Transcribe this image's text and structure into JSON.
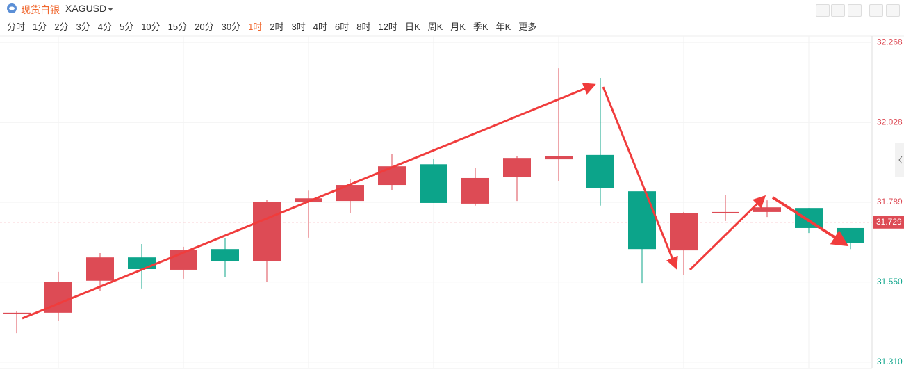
{
  "header": {
    "name": "现货白银",
    "symbol": "XAGUSD"
  },
  "toolbar": {
    "timeframes": [
      "分时",
      "1分",
      "2分",
      "3分",
      "4分",
      "5分",
      "10分",
      "15分",
      "20分",
      "30分",
      "1时",
      "2时",
      "3时",
      "4时",
      "6时",
      "8时",
      "12时",
      "日K",
      "周K",
      "月K",
      "季K",
      "年K",
      "更多"
    ],
    "active": 10
  },
  "chart_data": {
    "type": "candlestick",
    "open": [
      31.455,
      31.458,
      31.554,
      31.624,
      31.587,
      31.649,
      31.614,
      31.789,
      31.793,
      31.841,
      31.903,
      31.785,
      31.864,
      31.918,
      31.931,
      31.822,
      31.645,
      31.759,
      31.76,
      31.772,
      31.712
    ],
    "high": [
      31.464,
      31.581,
      31.637,
      31.664,
      31.656,
      31.681,
      31.797,
      31.824,
      31.858,
      31.933,
      31.92,
      31.893,
      31.928,
      32.191,
      32.162,
      31.822,
      31.76,
      31.812,
      31.795,
      31.772,
      31.712
    ],
    "low": [
      31.397,
      31.433,
      31.524,
      31.531,
      31.56,
      31.566,
      31.551,
      31.683,
      31.756,
      31.826,
      31.787,
      31.779,
      31.793,
      31.853,
      31.779,
      31.547,
      31.572,
      31.733,
      31.745,
      31.697,
      31.649
    ],
    "close": [
      31.458,
      31.551,
      31.624,
      31.589,
      31.647,
      31.612,
      31.791,
      31.801,
      31.841,
      31.897,
      31.787,
      31.862,
      31.922,
      31.928,
      31.831,
      31.649,
      31.756,
      31.76,
      31.774,
      31.712,
      31.668
    ],
    "up_color": "#dd4b55",
    "down_color": "#0ca48a",
    "ylim": [
      31.291,
      32.287
    ],
    "yticks": [
      {
        "value": 31.31,
        "label": "31.310"
      },
      {
        "value": 31.55,
        "label": "31.550"
      },
      31.789,
      32.028,
      32.268
    ],
    "current_price": 31.729,
    "grid": true
  }
}
